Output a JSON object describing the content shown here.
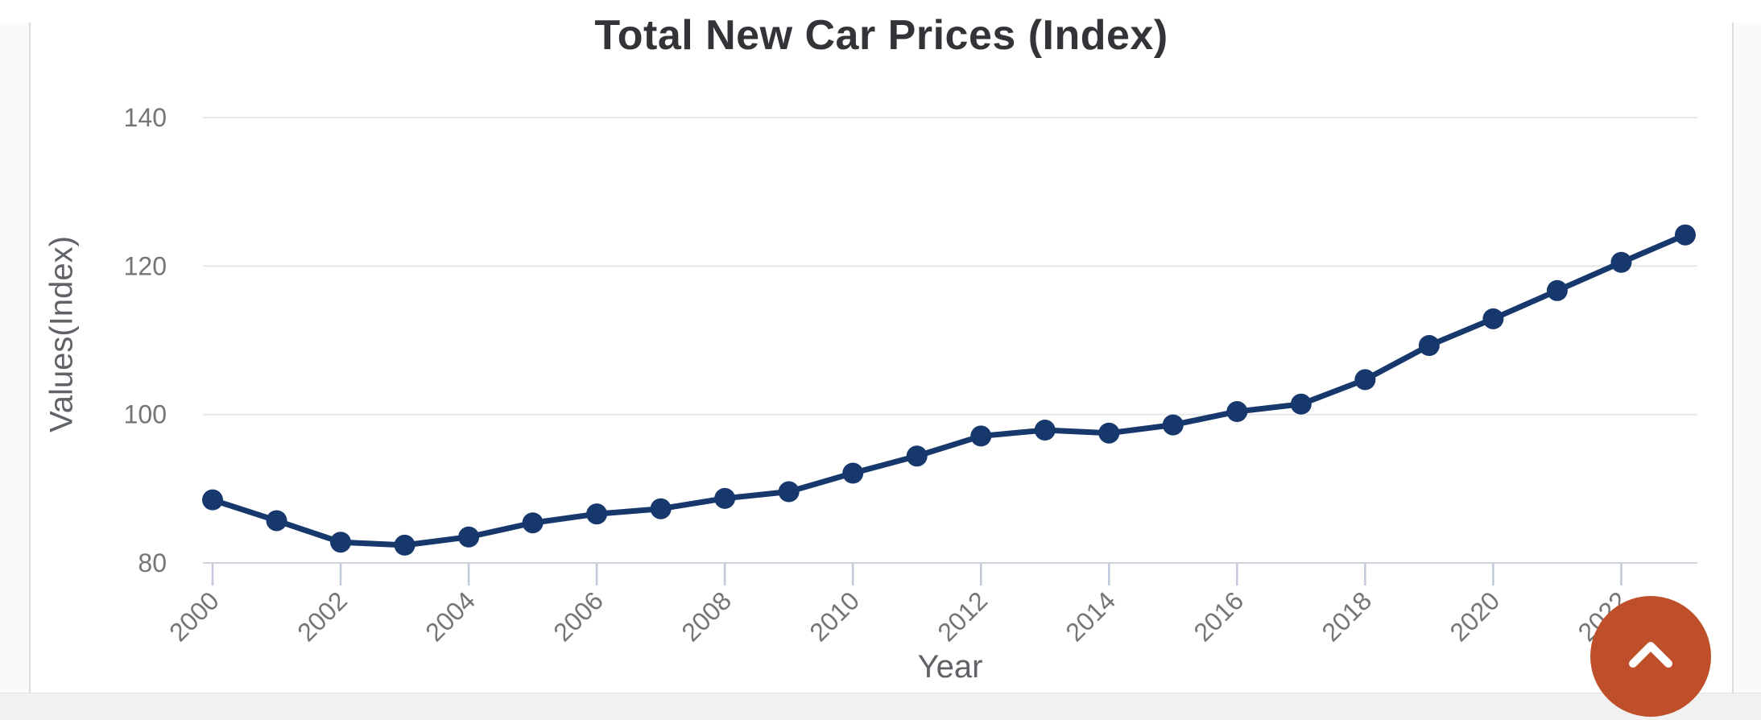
{
  "page": {
    "scroll_top_button": {
      "icon": "chevron-up-icon",
      "color": "#bf4f2b",
      "chevron_color": "#ffffff"
    }
  },
  "chart_data": {
    "type": "line",
    "title": "Total New Car Prices (Index)",
    "xlabel": "Year",
    "ylabel": "Values(Index)",
    "x": [
      2000,
      2001,
      2002,
      2003,
      2004,
      2005,
      2006,
      2007,
      2008,
      2009,
      2010,
      2011,
      2012,
      2013,
      2014,
      2015,
      2016,
      2017,
      2018,
      2019,
      2020,
      2021,
      2022,
      2023
    ],
    "values": [
      88.5,
      85.7,
      82.8,
      82.4,
      83.5,
      85.4,
      86.6,
      87.3,
      88.7,
      89.6,
      92.1,
      94.4,
      97.1,
      97.9,
      97.5,
      98.6,
      100.4,
      101.4,
      104.7,
      109.3,
      112.9,
      116.7,
      120.5,
      124.2
    ],
    "xticks": [
      2000,
      2002,
      2004,
      2006,
      2008,
      2010,
      2012,
      2014,
      2016,
      2018,
      2020,
      2022
    ],
    "yticks": [
      80,
      100,
      120,
      140
    ],
    "xlim": [
      2000,
      2023
    ],
    "ylim": [
      80,
      140
    ],
    "grid": "horizontal",
    "legend": false,
    "line_color": "#17386c",
    "marker": "circle",
    "grid_color": "#e8e8e8",
    "baseline_color": "#d0d4de",
    "tick_mark_color": "#c3c9dd",
    "tick_label_color": "#757575"
  }
}
